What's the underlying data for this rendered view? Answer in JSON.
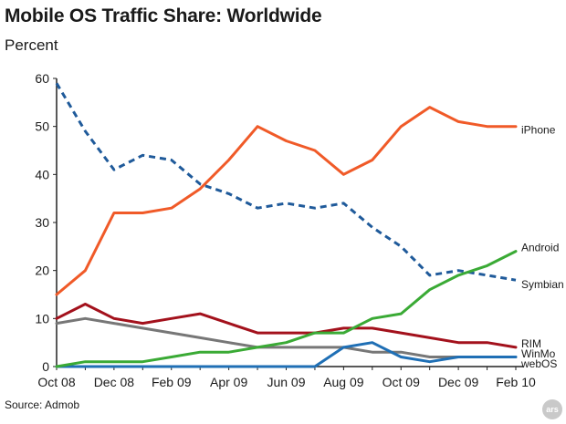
{
  "header": {
    "title": "Mobile OS Traffic Share: Worldwide",
    "subtitle": "Percent"
  },
  "footer": {
    "source": "Source: Admob",
    "badge": "ars"
  },
  "chart_data": {
    "type": "line",
    "title": "Mobile OS Traffic Share: Worldwide",
    "ylabel": "Percent",
    "ylim": [
      0,
      60
    ],
    "yticks": [
      0,
      10,
      20,
      30,
      40,
      50,
      60
    ],
    "x": [
      "Oct 08",
      "Nov 08",
      "Dec 08",
      "Jan 09",
      "Feb 09",
      "Mar 09",
      "Apr 09",
      "May 09",
      "Jun 09",
      "Jul 09",
      "Aug 09",
      "Sep 09",
      "Oct 09",
      "Nov 09",
      "Dec 09",
      "Jan 10",
      "Feb 10"
    ],
    "xticklabels": [
      "Oct 08",
      "Dec 08",
      "Feb 09",
      "Apr 09",
      "Jun 09",
      "Aug 09",
      "Oct 09",
      "Dec 09",
      "Feb 10"
    ],
    "grid": false,
    "legend": "labels at right end of lines",
    "series": [
      {
        "name": "iPhone",
        "color": "#f05a28",
        "dashed": false,
        "values": [
          15,
          20,
          32,
          32,
          33,
          37,
          43,
          50,
          47,
          45,
          40,
          43,
          50,
          54,
          51,
          50,
          50
        ]
      },
      {
        "name": "Symbian",
        "color": "#1f5a9a",
        "dashed": true,
        "values": [
          59,
          49,
          41,
          44,
          43,
          38,
          36,
          33,
          34,
          33,
          34,
          29,
          25,
          19,
          20,
          19,
          18
        ]
      },
      {
        "name": "Android",
        "color": "#3aaa35",
        "dashed": false,
        "values": [
          0,
          1,
          1,
          1,
          2,
          3,
          3,
          4,
          5,
          7,
          7,
          10,
          11,
          16,
          19,
          21,
          24
        ]
      },
      {
        "name": "RIM",
        "color": "#a3111c",
        "dashed": false,
        "values": [
          10,
          13,
          10,
          9,
          10,
          11,
          9,
          7,
          7,
          7,
          8,
          8,
          7,
          6,
          5,
          5,
          4
        ]
      },
      {
        "name": "WinMo",
        "color": "#777777",
        "dashed": false,
        "values": [
          9,
          10,
          9,
          8,
          7,
          6,
          5,
          4,
          4,
          4,
          4,
          3,
          3,
          2,
          2,
          2,
          2
        ]
      },
      {
        "name": "webOS",
        "color": "#1f6fb5",
        "dashed": false,
        "values": [
          0,
          0,
          0,
          0,
          0,
          0,
          0,
          0,
          0,
          0,
          4,
          5,
          2,
          1,
          2,
          2,
          2
        ]
      }
    ]
  }
}
